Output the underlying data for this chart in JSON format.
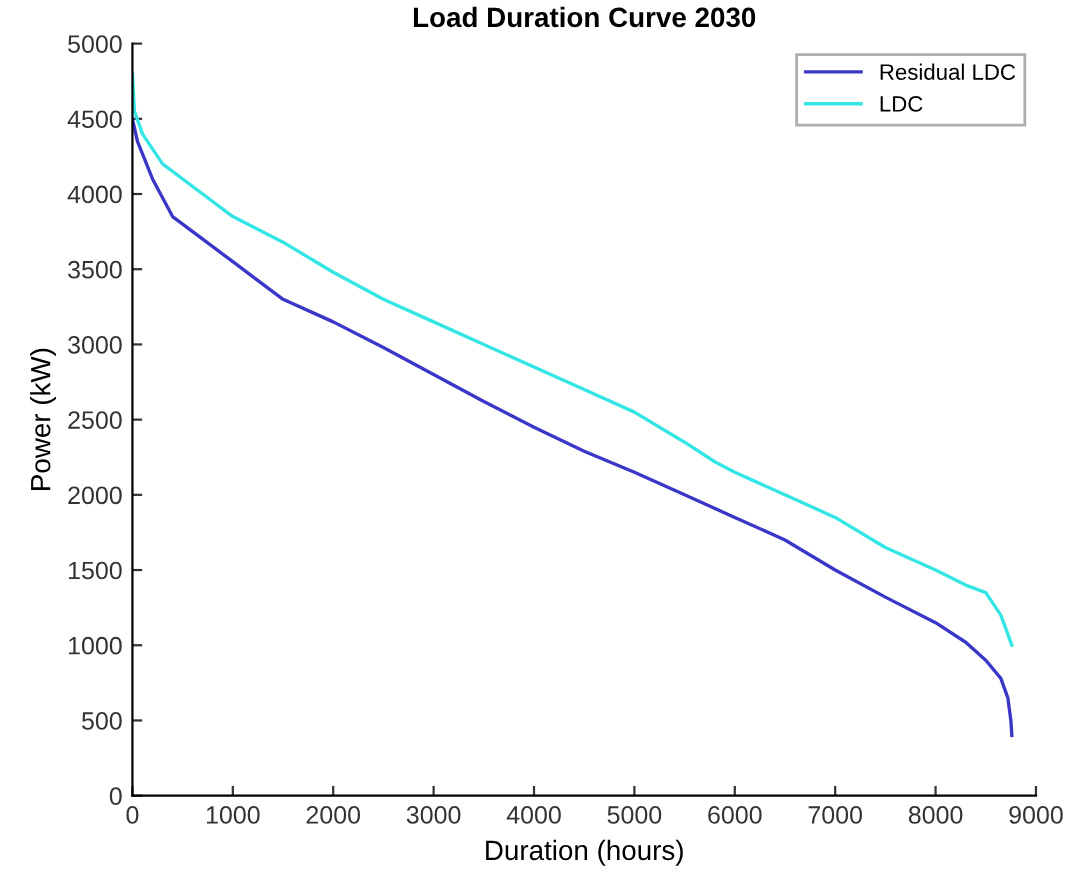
{
  "chart_data": {
    "type": "line",
    "title": "Load Duration Curve 2030",
    "xlabel": "Duration (hours)",
    "ylabel": "Power (kW)",
    "xlim": [
      0,
      9000
    ],
    "ylim": [
      0,
      5000
    ],
    "xticks": [
      0,
      1000,
      2000,
      3000,
      4000,
      5000,
      6000,
      7000,
      8000,
      9000
    ],
    "yticks": [
      0,
      500,
      1000,
      1500,
      2000,
      2500,
      3000,
      3500,
      4000,
      4500,
      5000
    ],
    "grid": false,
    "legend": "top right",
    "line_style": "solid",
    "marker": "none",
    "series": [
      {
        "name": "Residual LDC",
        "color": "#3a36c8",
        "x": [
          0,
          50,
          200,
          400,
          700,
          1000,
          1500,
          2000,
          2500,
          3000,
          3500,
          4000,
          4500,
          5000,
          5500,
          6000,
          6500,
          7000,
          7500,
          8000,
          8300,
          8500,
          8650,
          8720,
          8750,
          8760
        ],
        "values": [
          4500,
          4350,
          4100,
          3850,
          3700,
          3550,
          3300,
          3150,
          2980,
          2800,
          2620,
          2450,
          2290,
          2150,
          2000,
          1850,
          1700,
          1500,
          1320,
          1150,
          1020,
          900,
          780,
          650,
          500,
          400
        ]
      },
      {
        "name": "LDC",
        "color": "#33e5e5",
        "x": [
          0,
          20,
          100,
          300,
          600,
          1000,
          1500,
          2000,
          2500,
          3000,
          3500,
          4000,
          4500,
          5000,
          5500,
          5800,
          6000,
          6500,
          7000,
          7500,
          8000,
          8300,
          8500,
          8650,
          8760
        ],
        "values": [
          4800,
          4550,
          4400,
          4200,
          4050,
          3850,
          3680,
          3480,
          3300,
          3150,
          3000,
          2850,
          2700,
          2550,
          2350,
          2220,
          2150,
          2000,
          1850,
          1650,
          1500,
          1400,
          1350,
          1200,
          1000
        ]
      }
    ]
  }
}
